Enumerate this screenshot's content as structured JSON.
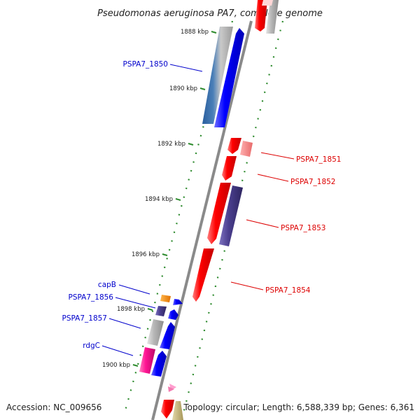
{
  "title": "Pseudomonas aeruginosa PA7, complete genome",
  "footer": {
    "accession": "Accession: NC_009656",
    "topology": "Topology: circular; Length: 6,588,339 bp; Genes: 6,361"
  },
  "ruler_ticks": [
    "1888 kbp",
    "1890 kbp",
    "1892 kbp",
    "1894 kbp",
    "1896 kbp",
    "1898 kbp",
    "1900 kbp"
  ],
  "genes": [
    {
      "label": "PSPA7_1850",
      "color": "#0000cc"
    },
    {
      "label": "PSPA7_1851",
      "color": "#dd0000"
    },
    {
      "label": "PSPA7_1852",
      "color": "#dd0000"
    },
    {
      "label": "PSPA7_1853",
      "color": "#dd0000"
    },
    {
      "label": "PSPA7_1854",
      "color": "#dd0000"
    },
    {
      "label": "capB",
      "color": "#0000cc"
    },
    {
      "label": "PSPA7_1856",
      "color": "#0000cc"
    },
    {
      "label": "PSPA7_1857",
      "color": "#0000cc"
    },
    {
      "label": "rdgC",
      "color": "#0000cc"
    }
  ],
  "colors": {
    "backbone": "#8a8a8a",
    "tick_dot": "#2e8b2e",
    "forward_red": "#ff0000",
    "reverse_blue": "#0000ff",
    "purple": "#4b3f8f",
    "gray": "#b0b0b0",
    "orange": "#ff8c00",
    "magenta": "#ff1493",
    "khaki": "#c8b878",
    "pink": "#ff9ecf",
    "steel_blue": "#4a7fb8"
  }
}
